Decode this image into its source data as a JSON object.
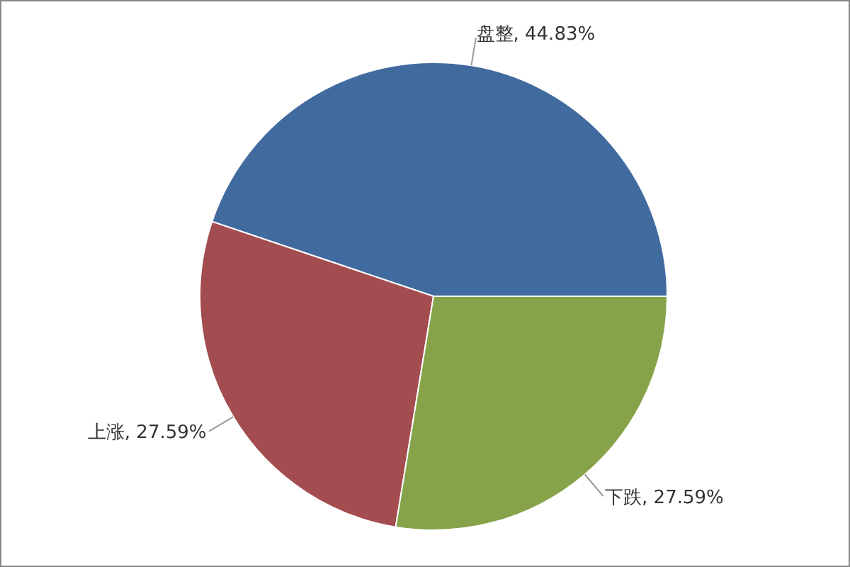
{
  "chart_data": {
    "type": "pie",
    "categories": [
      "盘整",
      "上涨",
      "下跌"
    ],
    "values": [
      44.83,
      27.59,
      27.59
    ],
    "colors": [
      "#416a9f",
      "#a34d50",
      "#86a34a"
    ],
    "value_labels": [
      "44.83%",
      "27.59%",
      "27.59%"
    ],
    "legend": false
  }
}
